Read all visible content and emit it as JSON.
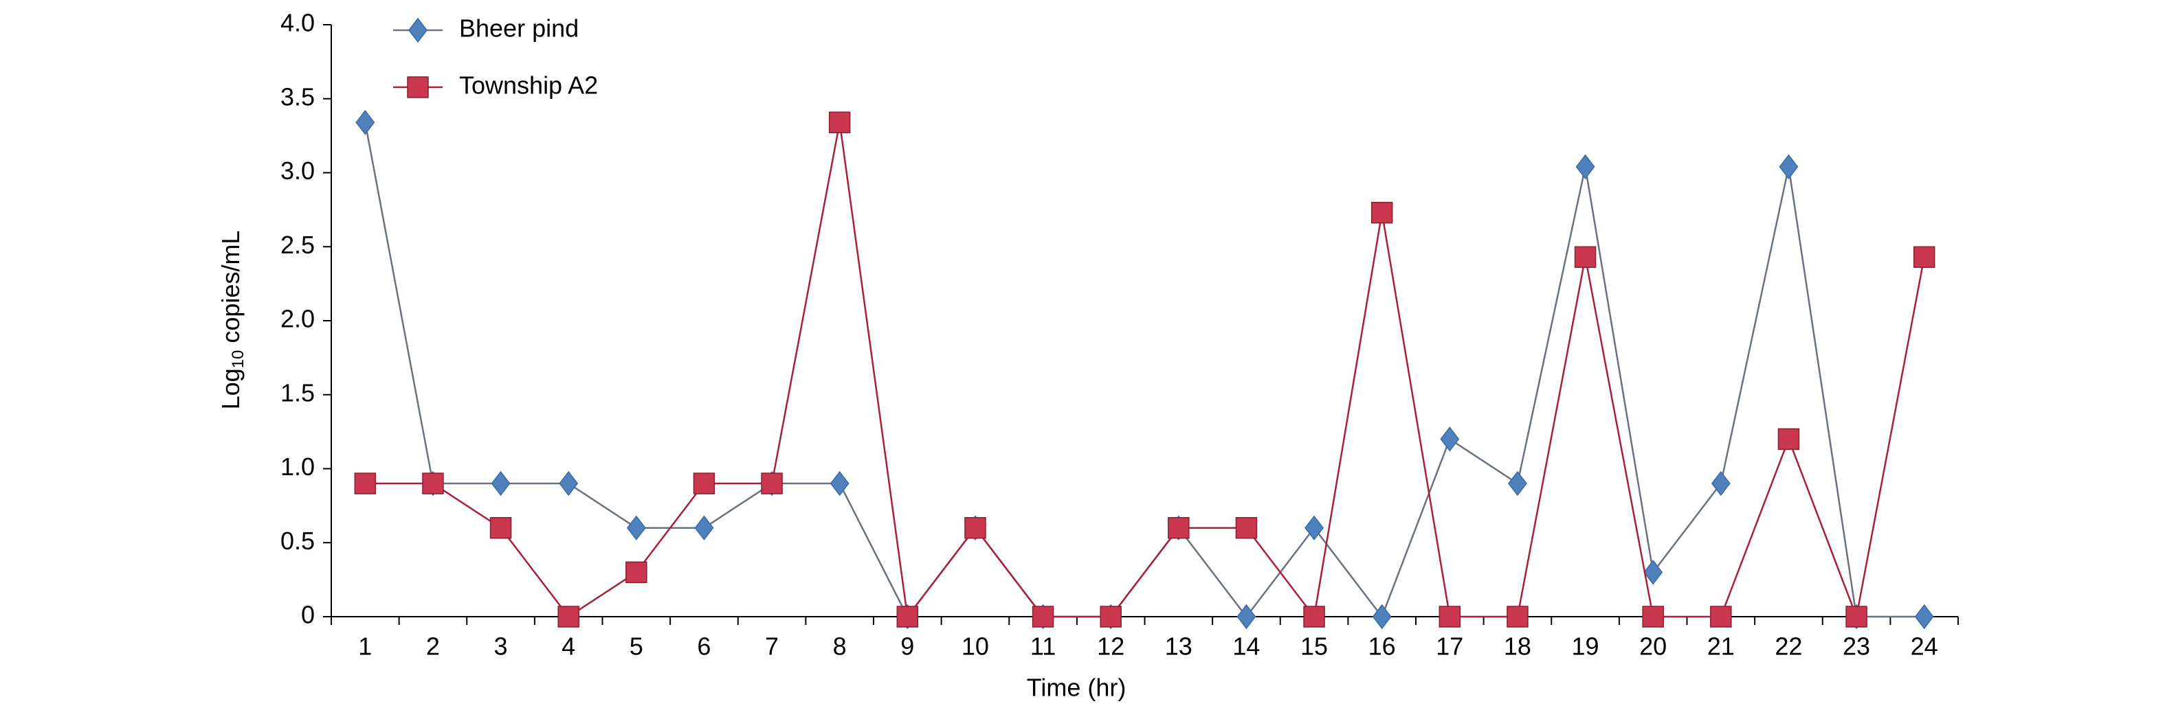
{
  "chart_data": {
    "type": "line",
    "x_label": "Time (hr)",
    "y_label": {
      "base": "Log",
      "sub": "10",
      "rest": " copies/mL"
    },
    "categories": [
      "1",
      "2",
      "3",
      "4",
      "5",
      "6",
      "7",
      "8",
      "9",
      "10",
      "11",
      "12",
      "13",
      "14",
      "15",
      "16",
      "17",
      "18",
      "19",
      "20",
      "21",
      "22",
      "23",
      "24"
    ],
    "series": [
      {
        "name": "Bheer pind",
        "color": "#4f81bd",
        "line_color": "#6a7280",
        "marker": "diamond",
        "values": [
          3.34,
          0.9,
          0.9,
          0.9,
          0.6,
          0.6,
          0.9,
          0.9,
          0,
          0.6,
          0,
          0,
          0.6,
          0,
          0.6,
          0,
          1.2,
          0.9,
          3.04,
          0.3,
          0.9,
          3.04,
          0,
          0
        ]
      },
      {
        "name": "Township A2",
        "color": "#c9384f",
        "line_color": "#a8203a",
        "marker": "square",
        "values": [
          0.9,
          0.9,
          0.6,
          0,
          0.3,
          0.9,
          0.9,
          3.34,
          0,
          0.6,
          0,
          0,
          0.6,
          0.6,
          0,
          2.73,
          0,
          0,
          2.43,
          0,
          0,
          1.2,
          0,
          2.43
        ]
      }
    ],
    "ylim": [
      0,
      4
    ],
    "yticks": [
      0,
      0.5,
      {
        "value": 1,
        "label": "1.0"
      },
      1.5,
      {
        "value": 2,
        "label": "2.0"
      },
      2.5,
      {
        "value": 3,
        "label": "3.0"
      },
      3.5,
      {
        "value": 4,
        "label": "4.0"
      }
    ],
    "grid": false,
    "legend": "top-left"
  }
}
